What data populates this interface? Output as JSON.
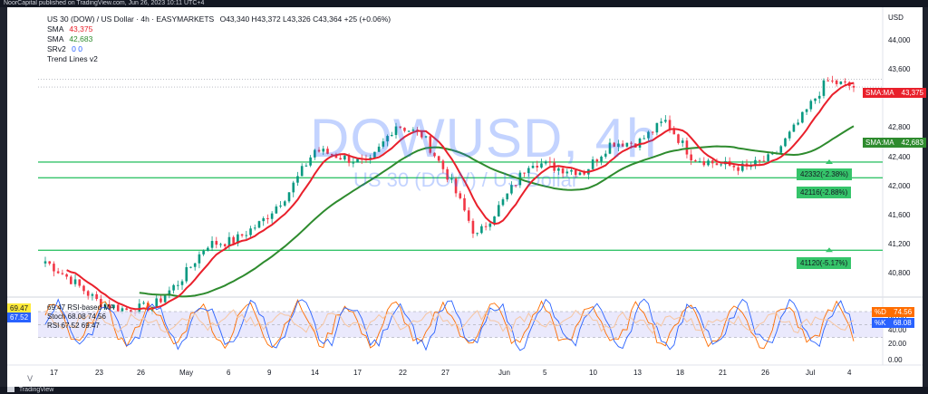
{
  "header": {
    "publisher": "NoorCapital published on TradingView.com, Jun 26, 2023 10:11 UTC+4"
  },
  "legend": {
    "title": "US 30 (DOW) / US Dollar · 4h · EASYMARKETS",
    "ohlc": "O43,340 H43,372 L43,326 C43,364 +25 (+0.06%)",
    "sma1_label": "SMA",
    "sma1_value": "43,375",
    "sma2_label": "SMA",
    "sma2_value": "42,683",
    "srv2_label": "SRv2",
    "srv2_values": "0  0",
    "trend_label": "Trend Lines v2"
  },
  "watermark": {
    "symbol": "DOWUSD, 4h",
    "description": "US 30 (DOW) / US Dollar"
  },
  "price_axis": {
    "currency": "USD",
    "ticks": [
      {
        "label": "44,000",
        "price": 44000
      },
      {
        "label": "43,600",
        "price": 43600
      },
      {
        "label": "42,800",
        "price": 42800
      },
      {
        "label": "42,400",
        "price": 42400
      },
      {
        "label": "42,000",
        "price": 42000
      },
      {
        "label": "41,600",
        "price": 41600
      },
      {
        "label": "41,200",
        "price": 41200
      },
      {
        "label": "40,800",
        "price": 40800
      }
    ],
    "sma1_tag": "SMA:MA",
    "sma1_tag_value": "43,375",
    "sma2_tag": "SMA:MA",
    "sma2_tag_value": "42,683"
  },
  "support_levels": [
    {
      "label": "42332(-2.38%)",
      "price": 42332
    },
    {
      "label": "42116(-2.88%)",
      "price": 42116
    },
    {
      "label": "41120(-5.17%)",
      "price": 41120
    }
  ],
  "rsi_pane": {
    "legend_rsi_ma": "69.47  RSI-based MA",
    "legend_stoch": "Stoch  68.08  74.56",
    "legend_rsi": "RSI  67.52  69.47",
    "left_value_1": "69.47",
    "left_value_2": "67.52",
    "axis_ticks": [
      {
        "label": "60.00",
        "value": 60
      },
      {
        "label": "40.00",
        "value": 40
      },
      {
        "label": "20.00",
        "value": 20
      },
      {
        "label": "0.00",
        "value": 0
      }
    ],
    "badge_d_label": "%D",
    "badge_d_value": "74.56",
    "badge_k_label": "%K",
    "badge_k_value": "68.08"
  },
  "time_axis": [
    "17",
    "23",
    "26",
    "May",
    "6",
    "9",
    "14",
    "17",
    "22",
    "27",
    "Jun",
    "5",
    "10",
    "13",
    "18",
    "21",
    "26",
    "Jul",
    "4"
  ],
  "footer": {
    "brand": "TradingView"
  },
  "colors": {
    "up": "#089981",
    "down": "#f23645",
    "sma_fast": "#e9202b",
    "sma_slow": "#2e8b2e",
    "support": "#35c46a",
    "rsi_line": "#2962ff",
    "stoch_k": "#2962ff",
    "stoch_d": "#ff6d00",
    "rsi_band": "#e1e0fb"
  },
  "chart_data": {
    "type": "candlestick",
    "symbol": "US 30 (DOW) / US Dollar",
    "timeframe": "4h",
    "y_axis_range": [
      40600,
      44200
    ],
    "anchor_prices": [
      {
        "date": "Apr 13",
        "price": 40970
      },
      {
        "date": "Apr 17",
        "price": 40700
      },
      {
        "date": "Apr 20",
        "price": 40400
      },
      {
        "date": "Apr 23",
        "price": 40300
      },
      {
        "date": "Apr 26",
        "price": 40350
      },
      {
        "date": "May 1",
        "price": 40700
      },
      {
        "date": "May 3",
        "price": 41200
      },
      {
        "date": "May 6",
        "price": 41250
      },
      {
        "date": "May 8",
        "price": 41500
      },
      {
        "date": "May 10",
        "price": 41900
      },
      {
        "date": "May 12",
        "price": 42500
      },
      {
        "date": "May 14",
        "price": 42400
      },
      {
        "date": "May 16",
        "price": 42300
      },
      {
        "date": "May 18",
        "price": 42850
      },
      {
        "date": "May 20",
        "price": 42700
      },
      {
        "date": "May 22",
        "price": 42100
      },
      {
        "date": "May 24",
        "price": 41300
      },
      {
        "date": "May 26",
        "price": 41800
      },
      {
        "date": "May 28",
        "price": 42350
      },
      {
        "date": "May 31",
        "price": 42250
      },
      {
        "date": "Jun 3",
        "price": 42200
      },
      {
        "date": "Jun 6",
        "price": 42600
      },
      {
        "date": "Jun 9",
        "price": 42600
      },
      {
        "date": "Jun 12",
        "price": 42900
      },
      {
        "date": "Jun 14",
        "price": 42400
      },
      {
        "date": "Jun 17",
        "price": 42300
      },
      {
        "date": "Jun 19",
        "price": 42250
      },
      {
        "date": "Jun 21",
        "price": 42400
      },
      {
        "date": "Jun 22",
        "price": 42900
      },
      {
        "date": "Jun 24",
        "price": 43450
      },
      {
        "date": "Jun 26",
        "price": 43364
      }
    ],
    "sma_fast_value": 43375,
    "sma_slow_value": 42683
  }
}
